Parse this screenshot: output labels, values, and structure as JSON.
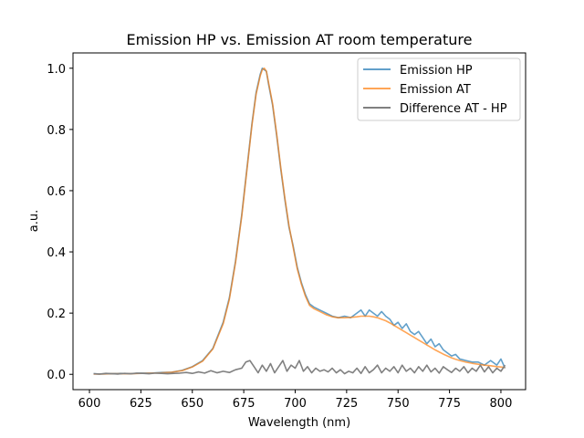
{
  "chart_data": {
    "type": "line",
    "title": "Emission HP vs. Emission AT room temperature",
    "xlabel": "Wavelength (nm)",
    "ylabel": "a.u.",
    "xlim": [
      592,
      812
    ],
    "ylim": [
      -0.05,
      1.05
    ],
    "xticks": [
      600,
      625,
      650,
      675,
      700,
      725,
      750,
      775,
      800
    ],
    "yticks": [
      0.0,
      0.2,
      0.4,
      0.6,
      0.8,
      1.0
    ],
    "xtick_labels": [
      "600",
      "625",
      "650",
      "675",
      "700",
      "725",
      "750",
      "775",
      "800"
    ],
    "ytick_labels": [
      "0.0",
      "0.2",
      "0.4",
      "0.6",
      "0.8",
      "1.0"
    ],
    "grid": false,
    "legend_position": "top-right",
    "series": [
      {
        "name": "Emission HP",
        "color": "#1f77b4",
        "opacity": 0.7,
        "x": [
          602,
          605,
          610,
          615,
          620,
          625,
          630,
          635,
          640,
          645,
          650,
          655,
          660,
          665,
          668,
          671,
          674,
          677,
          679,
          681,
          683,
          684,
          685,
          686,
          687,
          689,
          691,
          693,
          695,
          697,
          699,
          701,
          703,
          705,
          707,
          709,
          712,
          715,
          718,
          721,
          724,
          727,
          730,
          732,
          734,
          736,
          738,
          740,
          742,
          744,
          746,
          748,
          750,
          752,
          754,
          756,
          758,
          760,
          762,
          764,
          766,
          768,
          770,
          772,
          774,
          776,
          778,
          780,
          783,
          786,
          789,
          792,
          795,
          798,
          800,
          802
        ],
        "y": [
          0.002,
          0.001,
          0.002,
          0.003,
          0.002,
          0.004,
          0.004,
          0.006,
          0.007,
          0.013,
          0.025,
          0.045,
          0.085,
          0.17,
          0.25,
          0.37,
          0.52,
          0.7,
          0.82,
          0.92,
          0.98,
          1.0,
          0.995,
          0.99,
          0.95,
          0.88,
          0.78,
          0.67,
          0.57,
          0.48,
          0.42,
          0.35,
          0.3,
          0.26,
          0.23,
          0.22,
          0.21,
          0.2,
          0.19,
          0.185,
          0.19,
          0.185,
          0.2,
          0.21,
          0.19,
          0.21,
          0.2,
          0.19,
          0.205,
          0.19,
          0.18,
          0.16,
          0.17,
          0.15,
          0.165,
          0.14,
          0.13,
          0.14,
          0.12,
          0.1,
          0.115,
          0.09,
          0.1,
          0.08,
          0.07,
          0.06,
          0.065,
          0.05,
          0.045,
          0.04,
          0.04,
          0.03,
          0.045,
          0.03,
          0.05,
          0.02
        ]
      },
      {
        "name": "Emission AT",
        "color": "#ff7f0e",
        "opacity": 0.7,
        "x": [
          602,
          605,
          610,
          615,
          620,
          625,
          630,
          635,
          640,
          645,
          650,
          655,
          660,
          665,
          668,
          671,
          674,
          677,
          679,
          681,
          683,
          684,
          685,
          686,
          687,
          689,
          691,
          693,
          695,
          697,
          699,
          701,
          703,
          705,
          707,
          709,
          712,
          715,
          718,
          721,
          724,
          727,
          730,
          732,
          734,
          736,
          738,
          740,
          742,
          744,
          746,
          748,
          750,
          752,
          754,
          756,
          758,
          760,
          762,
          764,
          766,
          768,
          770,
          772,
          774,
          776,
          778,
          780,
          783,
          786,
          789,
          792,
          795,
          798,
          800,
          802
        ],
        "y": [
          0.001,
          0.001,
          0.002,
          0.002,
          0.002,
          0.003,
          0.004,
          0.005,
          0.007,
          0.012,
          0.024,
          0.043,
          0.083,
          0.165,
          0.245,
          0.365,
          0.515,
          0.695,
          0.815,
          0.915,
          0.975,
          0.995,
          1.0,
          0.99,
          0.955,
          0.885,
          0.785,
          0.675,
          0.575,
          0.485,
          0.415,
          0.345,
          0.295,
          0.255,
          0.225,
          0.215,
          0.205,
          0.195,
          0.188,
          0.185,
          0.185,
          0.186,
          0.188,
          0.19,
          0.19,
          0.19,
          0.188,
          0.185,
          0.18,
          0.175,
          0.168,
          0.16,
          0.152,
          0.144,
          0.136,
          0.128,
          0.12,
          0.112,
          0.104,
          0.096,
          0.088,
          0.08,
          0.073,
          0.066,
          0.06,
          0.054,
          0.049,
          0.045,
          0.04,
          0.036,
          0.033,
          0.03,
          0.028,
          0.025,
          0.024,
          0.022
        ]
      },
      {
        "name": "Difference AT - HP",
        "color": "#808080",
        "opacity": 1,
        "x": [
          602,
          605,
          608,
          611,
          614,
          617,
          620,
          623,
          626,
          629,
          632,
          635,
          638,
          641,
          644,
          647,
          650,
          653,
          656,
          659,
          662,
          665,
          668,
          671,
          674,
          676,
          678,
          680,
          682,
          684,
          686,
          688,
          690,
          692,
          694,
          696,
          698,
          700,
          702,
          704,
          706,
          708,
          710,
          712,
          714,
          716,
          718,
          720,
          722,
          724,
          726,
          728,
          730,
          732,
          734,
          736,
          738,
          740,
          742,
          744,
          746,
          748,
          750,
          752,
          754,
          756,
          758,
          760,
          762,
          764,
          766,
          768,
          770,
          772,
          774,
          776,
          778,
          780,
          782,
          784,
          786,
          788,
          790,
          792,
          794,
          796,
          798,
          800,
          802
        ],
        "y": [
          0.002,
          0.001,
          0.003,
          0.002,
          0.001,
          0.003,
          0.002,
          0.004,
          0.003,
          0.002,
          0.004,
          0.003,
          0.002,
          0.003,
          0.004,
          0.006,
          0.003,
          0.008,
          0.004,
          0.012,
          0.005,
          0.01,
          0.006,
          0.015,
          0.02,
          0.04,
          0.045,
          0.025,
          0.005,
          0.03,
          0.01,
          0.035,
          0.005,
          0.025,
          0.045,
          0.01,
          0.03,
          0.02,
          0.045,
          0.01,
          0.025,
          0.005,
          0.02,
          0.01,
          0.015,
          0.008,
          0.02,
          0.005,
          0.015,
          0.002,
          0.01,
          0.005,
          0.02,
          0.003,
          0.025,
          0.005,
          0.015,
          0.03,
          0.005,
          0.02,
          0.01,
          0.025,
          0.005,
          0.03,
          0.01,
          0.02,
          0.005,
          0.025,
          0.01,
          0.03,
          0.008,
          0.02,
          0.004,
          0.025,
          0.015,
          0.006,
          0.02,
          0.01,
          0.025,
          0.005,
          0.02,
          0.01,
          0.03,
          0.008,
          0.025,
          0.005,
          0.02,
          0.01,
          0.03
        ]
      }
    ]
  }
}
